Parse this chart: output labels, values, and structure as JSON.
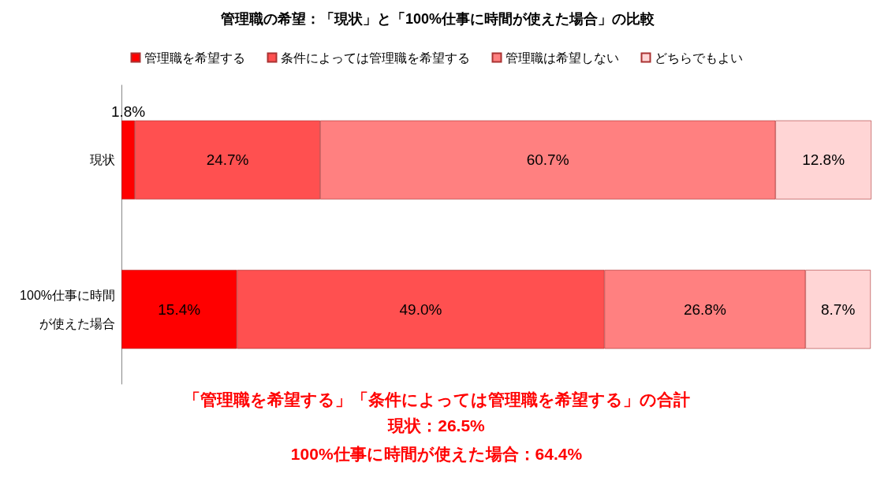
{
  "chart_data": {
    "type": "bar",
    "orientation": "horizontal",
    "stacked": true,
    "title": "管理職の希望：「現状」と「100%仕事に時間が使えた場合」の比較",
    "categories": [
      "現状",
      "100%仕事に時間が使えた場合"
    ],
    "series": [
      {
        "name": "管理職を希望する",
        "color": "#ff0000",
        "values": [
          1.8,
          15.4
        ],
        "value_labels": [
          "1.8%",
          "15.4%"
        ]
      },
      {
        "name": "条件によっては管理職を希望する",
        "color": "#ff5050",
        "values": [
          24.7,
          49.0
        ],
        "value_labels": [
          "24.7%",
          "49.0%"
        ]
      },
      {
        "name": "管理職は希望しない",
        "color": "#ff8080",
        "values": [
          60.7,
          26.8
        ],
        "value_labels": [
          "60.7%",
          "26.8%"
        ]
      },
      {
        "name": "どちらでもよい",
        "color": "#ffd5d5",
        "values": [
          12.8,
          8.7
        ],
        "value_labels": [
          "12.8%",
          "8.7%"
        ]
      }
    ],
    "xlim": [
      0,
      100
    ],
    "tick_labels": "y",
    "legend": "top",
    "grid": false,
    "annotations": [
      "「管理職を希望する」「条件によっては管理職を希望する」の合計",
      "現状：26.5%",
      "100%仕事に時間が使えた場合：64.4%"
    ]
  }
}
